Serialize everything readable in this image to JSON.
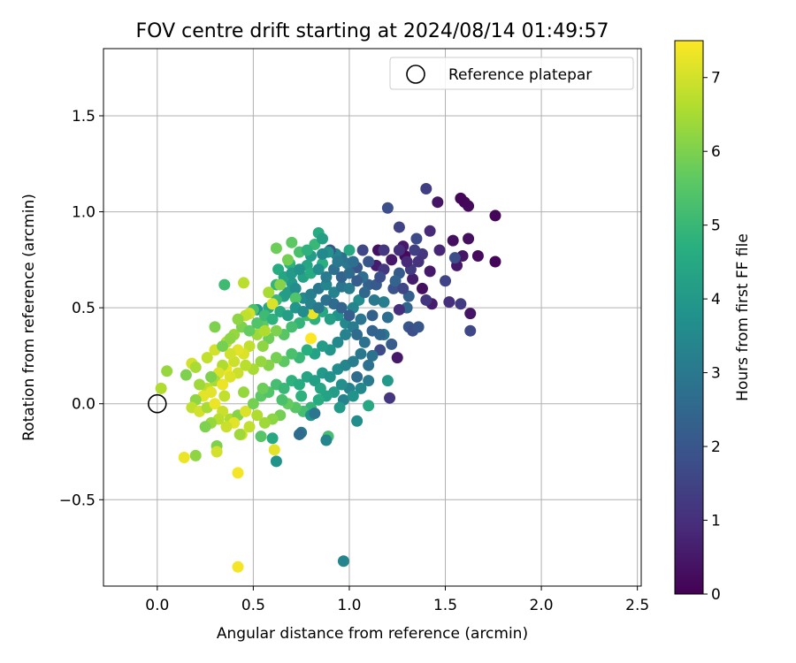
{
  "chart_data": {
    "type": "scatter",
    "title": "FOV centre drift starting at 2024/08/14 01:49:57",
    "xlabel": "Angular distance from reference (arcmin)",
    "ylabel": "Rotation from reference (arcmin)",
    "xlim": [
      -0.28,
      2.52
    ],
    "ylim": [
      -0.95,
      1.85
    ],
    "xticks": [
      0.0,
      0.5,
      1.0,
      1.5,
      2.0,
      2.5
    ],
    "xtick_labels": [
      "0.0",
      "0.5",
      "1.0",
      "1.5",
      "2.0",
      "2.5"
    ],
    "yticks": [
      -0.5,
      0.0,
      0.5,
      1.0,
      1.5
    ],
    "ytick_labels": [
      "−0.5",
      "0.0",
      "0.5",
      "1.0",
      "1.5"
    ],
    "grid": true,
    "legend": {
      "placement": "top-right",
      "entries": [
        "Reference platepar"
      ]
    },
    "reference_point": {
      "x": 0.0,
      "y": 0.0
    },
    "colorbar": {
      "label": "Hours from first FF file",
      "range": [
        0,
        7.5
      ],
      "ticks": [
        0,
        1,
        2,
        3,
        4,
        5,
        6,
        7
      ],
      "tick_labels": [
        "0",
        "1",
        "2",
        "3",
        "4",
        "5",
        "6",
        "7"
      ],
      "colormap": "viridis"
    },
    "points": [
      [
        1.76,
        0.98,
        0.1
      ],
      [
        1.76,
        0.74,
        0.1
      ],
      [
        1.67,
        0.77,
        0.2
      ],
      [
        1.62,
        1.03,
        0.2
      ],
      [
        1.6,
        1.05,
        0.15
      ],
      [
        1.58,
        1.07,
        0.1
      ],
      [
        1.62,
        0.86,
        0.3
      ],
      [
        1.59,
        0.77,
        0.4
      ],
      [
        1.54,
        0.85,
        0.3
      ],
      [
        1.56,
        0.72,
        0.5
      ],
      [
        1.63,
        0.47,
        0.4
      ],
      [
        1.63,
        0.38,
        1.6
      ],
      [
        1.58,
        0.52,
        1.3
      ],
      [
        1.55,
        0.76,
        1.8
      ],
      [
        1.5,
        0.64,
        1.5
      ],
      [
        1.52,
        0.53,
        1.0
      ],
      [
        1.46,
        1.05,
        0.4
      ],
      [
        1.42,
        0.9,
        0.9
      ],
      [
        1.4,
        1.12,
        1.4
      ],
      [
        1.47,
        0.8,
        0.8
      ],
      [
        1.42,
        0.69,
        0.5
      ],
      [
        1.43,
        0.52,
        0.6
      ],
      [
        1.4,
        0.54,
        1.2
      ],
      [
        1.38,
        0.6,
        0.3
      ],
      [
        1.35,
        0.86,
        1.7
      ],
      [
        1.38,
        0.78,
        1.2
      ],
      [
        1.33,
        0.65,
        0.6
      ],
      [
        1.28,
        0.82,
        0.5
      ],
      [
        1.29,
        0.77,
        0.2
      ],
      [
        1.22,
        0.75,
        0.5
      ],
      [
        1.15,
        0.8,
        0.3
      ],
      [
        1.14,
        0.72,
        0.6
      ],
      [
        1.18,
        0.7,
        1.2
      ],
      [
        1.2,
        1.02,
        1.8
      ],
      [
        1.26,
        0.92,
        1.5
      ],
      [
        1.26,
        0.68,
        2.1
      ],
      [
        1.23,
        0.6,
        1.9
      ],
      [
        1.31,
        0.56,
        2.3
      ],
      [
        1.31,
        0.4,
        2.0
      ],
      [
        1.33,
        0.38,
        1.8
      ],
      [
        1.36,
        0.4,
        2.0
      ],
      [
        1.3,
        0.5,
        2.5
      ],
      [
        1.26,
        0.49,
        1.0
      ],
      [
        1.25,
        0.24,
        0.5
      ],
      [
        1.21,
        0.03,
        1.2
      ],
      [
        1.2,
        0.45,
        2.7
      ],
      [
        1.18,
        0.53,
        3.2
      ],
      [
        1.18,
        0.36,
        2.9
      ],
      [
        1.16,
        0.36,
        2.5
      ],
      [
        1.16,
        0.28,
        1.7
      ],
      [
        1.22,
        0.31,
        2.2
      ],
      [
        1.2,
        0.12,
        4.0
      ],
      [
        1.12,
        0.25,
        2.8
      ],
      [
        1.13,
        0.54,
        3.0
      ],
      [
        1.1,
        0.62,
        2.3
      ],
      [
        1.07,
        0.66,
        2.7
      ],
      [
        1.07,
        0.8,
        1.6
      ],
      [
        1.04,
        0.71,
        2.0
      ],
      [
        1.05,
        0.54,
        3.6
      ],
      [
        1.0,
        0.8,
        4.5
      ],
      [
        0.99,
        0.73,
        3.0
      ],
      [
        0.96,
        0.76,
        2.8
      ],
      [
        0.93,
        0.78,
        3.3
      ],
      [
        0.9,
        0.8,
        2.0
      ],
      [
        0.89,
        0.79,
        3.8
      ],
      [
        0.84,
        0.89,
        4.6
      ],
      [
        0.82,
        0.83,
        5.0
      ],
      [
        0.86,
        0.73,
        4.7
      ],
      [
        0.8,
        0.77,
        4.1
      ],
      [
        0.78,
        0.72,
        4.4
      ],
      [
        0.74,
        0.79,
        5.3
      ],
      [
        0.69,
        0.73,
        4.8
      ],
      [
        0.62,
        0.81,
        5.8
      ],
      [
        0.63,
        0.7,
        4.6
      ],
      [
        0.7,
        0.63,
        4.0
      ],
      [
        0.66,
        0.56,
        4.2
      ],
      [
        0.62,
        0.54,
        5.0
      ],
      [
        0.58,
        0.5,
        4.5
      ],
      [
        0.55,
        0.41,
        5.6
      ],
      [
        0.52,
        0.49,
        3.9
      ],
      [
        0.5,
        0.49,
        5.3
      ],
      [
        0.48,
        0.47,
        7.0
      ],
      [
        0.45,
        0.63,
        6.7
      ],
      [
        0.35,
        0.62,
        5.1
      ],
      [
        0.3,
        0.4,
        6.0
      ],
      [
        0.6,
        0.52,
        7.1
      ],
      [
        0.68,
        0.58,
        4.1
      ],
      [
        0.72,
        0.6,
        3.6
      ],
      [
        0.76,
        0.55,
        3.5
      ],
      [
        0.8,
        0.57,
        3.2
      ],
      [
        0.84,
        0.6,
        3.0
      ],
      [
        0.88,
        0.62,
        3.4
      ],
      [
        0.92,
        0.58,
        3.3
      ],
      [
        0.96,
        0.61,
        2.9
      ],
      [
        1.0,
        0.6,
        3.1
      ],
      [
        1.02,
        0.5,
        3.4
      ],
      [
        0.98,
        0.42,
        3.5
      ],
      [
        0.94,
        0.46,
        3.8
      ],
      [
        0.9,
        0.44,
        4.2
      ],
      [
        0.86,
        0.48,
        4.5
      ],
      [
        0.82,
        0.44,
        4.8
      ],
      [
        0.78,
        0.46,
        5.1
      ],
      [
        0.74,
        0.42,
        4.9
      ],
      [
        0.7,
        0.4,
        5.2
      ],
      [
        0.66,
        0.36,
        5.5
      ],
      [
        0.62,
        0.38,
        6.0
      ],
      [
        0.58,
        0.34,
        5.8
      ],
      [
        0.55,
        0.3,
        6.2
      ],
      [
        0.52,
        0.36,
        6.4
      ],
      [
        0.48,
        0.3,
        6.8
      ],
      [
        0.45,
        0.26,
        7.1
      ],
      [
        0.42,
        0.28,
        7.2
      ],
      [
        0.4,
        0.22,
        6.9
      ],
      [
        0.38,
        0.26,
        7.0
      ],
      [
        0.36,
        0.18,
        7.3
      ],
      [
        0.34,
        0.2,
        6.6
      ],
      [
        0.32,
        0.16,
        7.1
      ],
      [
        0.3,
        0.12,
        6.5
      ],
      [
        0.28,
        0.14,
        6.0
      ],
      [
        0.26,
        0.08,
        6.7
      ],
      [
        0.24,
        0.04,
        7.2
      ],
      [
        0.22,
        0.1,
        6.4
      ],
      [
        0.2,
        0.02,
        6.2
      ],
      [
        0.18,
        -0.02,
        6.8
      ],
      [
        0.22,
        -0.04,
        7.0
      ],
      [
        0.26,
        -0.02,
        6.5
      ],
      [
        0.3,
        0.0,
        7.3
      ],
      [
        0.34,
        -0.04,
        6.9
      ],
      [
        0.38,
        -0.08,
        6.6
      ],
      [
        0.42,
        -0.06,
        6.1
      ],
      [
        0.46,
        -0.04,
        7.1
      ],
      [
        0.5,
        0.0,
        5.9
      ],
      [
        0.54,
        0.04,
        5.6
      ],
      [
        0.58,
        0.06,
        5.4
      ],
      [
        0.62,
        0.1,
        5.2
      ],
      [
        0.66,
        0.08,
        5.0
      ],
      [
        0.7,
        0.12,
        4.8
      ],
      [
        0.74,
        0.1,
        4.6
      ],
      [
        0.78,
        0.14,
        4.4
      ],
      [
        0.82,
        0.12,
        4.2
      ],
      [
        0.86,
        0.16,
        4.0
      ],
      [
        0.9,
        0.14,
        3.8
      ],
      [
        0.94,
        0.18,
        3.6
      ],
      [
        0.98,
        0.2,
        3.4
      ],
      [
        1.02,
        0.22,
        3.2
      ],
      [
        1.06,
        0.26,
        3.0
      ],
      [
        1.1,
        0.2,
        2.8
      ],
      [
        1.04,
        0.14,
        2.6
      ],
      [
        1.0,
        0.08,
        3.3
      ],
      [
        0.96,
        0.1,
        3.7
      ],
      [
        0.92,
        0.06,
        4.1
      ],
      [
        0.88,
        0.04,
        4.3
      ],
      [
        0.84,
        0.02,
        4.6
      ],
      [
        0.8,
        -0.02,
        4.9
      ],
      [
        0.76,
        -0.04,
        5.2
      ],
      [
        0.72,
        -0.02,
        5.5
      ],
      [
        0.68,
        0.0,
        5.7
      ],
      [
        0.64,
        -0.06,
        5.9
      ],
      [
        0.6,
        -0.08,
        6.2
      ],
      [
        0.56,
        -0.1,
        6.4
      ],
      [
        0.52,
        -0.06,
        6.6
      ],
      [
        0.48,
        -0.12,
        6.8
      ],
      [
        0.44,
        -0.16,
        7.0
      ],
      [
        0.4,
        -0.1,
        7.2
      ],
      [
        0.36,
        -0.12,
        6.9
      ],
      [
        0.32,
        -0.08,
        6.7
      ],
      [
        0.28,
        -0.1,
        6.3
      ],
      [
        0.25,
        -0.12,
        6.0
      ],
      [
        0.05,
        0.17,
        6.3
      ],
      [
        0.02,
        0.08,
        6.6
      ],
      [
        0.15,
        0.15,
        6.0
      ],
      [
        0.18,
        0.21,
        7.0
      ],
      [
        0.2,
        0.19,
        6.5
      ],
      [
        0.14,
        -0.28,
        7.3
      ],
      [
        0.2,
        -0.27,
        6.2
      ],
      [
        0.31,
        -0.22,
        6.0
      ],
      [
        0.31,
        -0.25,
        7.0
      ],
      [
        0.42,
        -0.36,
        7.4
      ],
      [
        0.43,
        -0.16,
        6.4
      ],
      [
        0.42,
        -0.85,
        7.4
      ],
      [
        0.54,
        -0.17,
        5.5
      ],
      [
        0.61,
        -0.24,
        7.2
      ],
      [
        0.62,
        -0.3,
        3.8
      ],
      [
        0.6,
        -0.18,
        4.5
      ],
      [
        0.75,
        -0.15,
        3.0
      ],
      [
        0.74,
        -0.16,
        2.6
      ],
      [
        0.8,
        -0.06,
        3.8
      ],
      [
        0.82,
        -0.05,
        2.9
      ],
      [
        0.89,
        -0.17,
        5.2
      ],
      [
        0.88,
        -0.19,
        3.4
      ],
      [
        0.97,
        0.02,
        3.3
      ],
      [
        1.04,
        -0.09,
        3.6
      ],
      [
        1.1,
        -0.01,
        4.5
      ],
      [
        0.97,
        -0.82,
        3.4
      ],
      [
        0.8,
        0.34,
        7.5
      ],
      [
        0.81,
        0.47,
        7.3
      ],
      [
        0.68,
        0.75,
        5.9
      ],
      [
        0.72,
        0.55,
        5.4
      ],
      [
        0.76,
        0.66,
        4.3
      ],
      [
        0.8,
        0.68,
        4.6
      ],
      [
        0.84,
        0.7,
        3.7
      ],
      [
        0.88,
        0.66,
        3.1
      ],
      [
        0.92,
        0.7,
        2.7
      ],
      [
        0.96,
        0.66,
        2.4
      ],
      [
        1.0,
        0.68,
        2.6
      ],
      [
        1.04,
        0.64,
        2.2
      ],
      [
        1.08,
        0.58,
        2.5
      ],
      [
        1.12,
        0.46,
        2.3
      ],
      [
        1.14,
        0.62,
        2.1
      ],
      [
        1.06,
        0.44,
        2.9
      ],
      [
        1.02,
        0.4,
        3.1
      ],
      [
        0.98,
        0.36,
        3.3
      ],
      [
        0.94,
        0.32,
        3.5
      ],
      [
        0.9,
        0.28,
        3.9
      ],
      [
        0.86,
        0.3,
        4.1
      ],
      [
        0.82,
        0.26,
        4.3
      ],
      [
        0.78,
        0.28,
        4.7
      ],
      [
        0.74,
        0.24,
        5.0
      ],
      [
        0.7,
        0.26,
        5.3
      ],
      [
        0.66,
        0.22,
        5.6
      ],
      [
        0.62,
        0.24,
        5.9
      ],
      [
        0.58,
        0.2,
        6.1
      ],
      [
        0.54,
        0.22,
        6.3
      ],
      [
        0.5,
        0.18,
        6.5
      ],
      [
        0.46,
        0.2,
        6.7
      ],
      [
        0.42,
        0.16,
        6.9
      ],
      [
        0.38,
        0.14,
        7.1
      ],
      [
        0.34,
        0.1,
        7.3
      ],
      [
        0.36,
        0.32,
        6.6
      ],
      [
        0.4,
        0.36,
        6.3
      ],
      [
        0.44,
        0.4,
        6.0
      ],
      [
        0.48,
        0.38,
        5.7
      ],
      [
        0.52,
        0.42,
        5.4
      ],
      [
        0.56,
        0.46,
        5.1
      ],
      [
        0.6,
        0.44,
        4.8
      ],
      [
        0.64,
        0.48,
        4.5
      ],
      [
        0.68,
        0.46,
        4.2
      ],
      [
        0.72,
        0.5,
        3.9
      ],
      [
        0.76,
        0.48,
        3.6
      ],
      [
        0.8,
        0.52,
        3.3
      ],
      [
        0.84,
        0.5,
        3.0
      ],
      [
        0.88,
        0.54,
        2.8
      ],
      [
        0.92,
        0.52,
        2.6
      ],
      [
        0.96,
        0.5,
        2.4
      ],
      [
        1.0,
        0.46,
        2.2
      ],
      [
        1.04,
        0.36,
        2.6
      ],
      [
        1.08,
        0.32,
        2.8
      ],
      [
        1.12,
        0.38,
        2.4
      ],
      [
        1.1,
        0.12,
        3.1
      ],
      [
        1.06,
        0.08,
        3.5
      ],
      [
        1.02,
        0.04,
        3.8
      ],
      [
        0.95,
        -0.02,
        4.0
      ],
      [
        0.85,
        0.08,
        4.4
      ],
      [
        0.75,
        0.04,
        4.8
      ],
      [
        0.65,
        0.02,
        5.3
      ],
      [
        0.55,
        0.08,
        5.8
      ],
      [
        0.45,
        0.06,
        6.3
      ],
      [
        0.35,
        0.04,
        6.8
      ],
      [
        0.28,
        0.06,
        7.2
      ],
      [
        0.26,
        0.24,
        6.8
      ],
      [
        0.3,
        0.28,
        7.0
      ],
      [
        0.34,
        0.3,
        5.9
      ],
      [
        0.38,
        0.34,
        6.2
      ],
      [
        0.62,
        0.62,
        4.9
      ],
      [
        0.66,
        0.66,
        4.4
      ],
      [
        0.7,
        0.68,
        4.0
      ],
      [
        0.74,
        0.7,
        3.8
      ],
      [
        0.86,
        0.78,
        3.5
      ],
      [
        0.94,
        0.74,
        3.0
      ],
      [
        1.02,
        0.74,
        2.7
      ],
      [
        1.1,
        0.74,
        2.0
      ],
      [
        1.16,
        0.66,
        1.8
      ],
      [
        1.24,
        0.64,
        2.4
      ],
      [
        1.28,
        0.6,
        1.6
      ],
      [
        1.32,
        0.7,
        1.3
      ],
      [
        1.36,
        0.74,
        1.1
      ],
      [
        1.34,
        0.8,
        1.4
      ],
      [
        1.3,
        0.74,
        0.9
      ],
      [
        1.26,
        0.8,
        1.0
      ],
      [
        1.18,
        0.8,
        1.2
      ],
      [
        0.86,
        0.86,
        4.2
      ],
      [
        0.78,
        0.8,
        4.8
      ],
      [
        0.7,
        0.84,
        5.6
      ],
      [
        0.64,
        0.62,
        6.1
      ],
      [
        0.58,
        0.58,
        6.5
      ],
      [
        0.56,
        0.38,
        6.6
      ],
      [
        0.46,
        0.46,
        6.8
      ],
      [
        0.42,
        0.44,
        6.2
      ]
    ]
  }
}
